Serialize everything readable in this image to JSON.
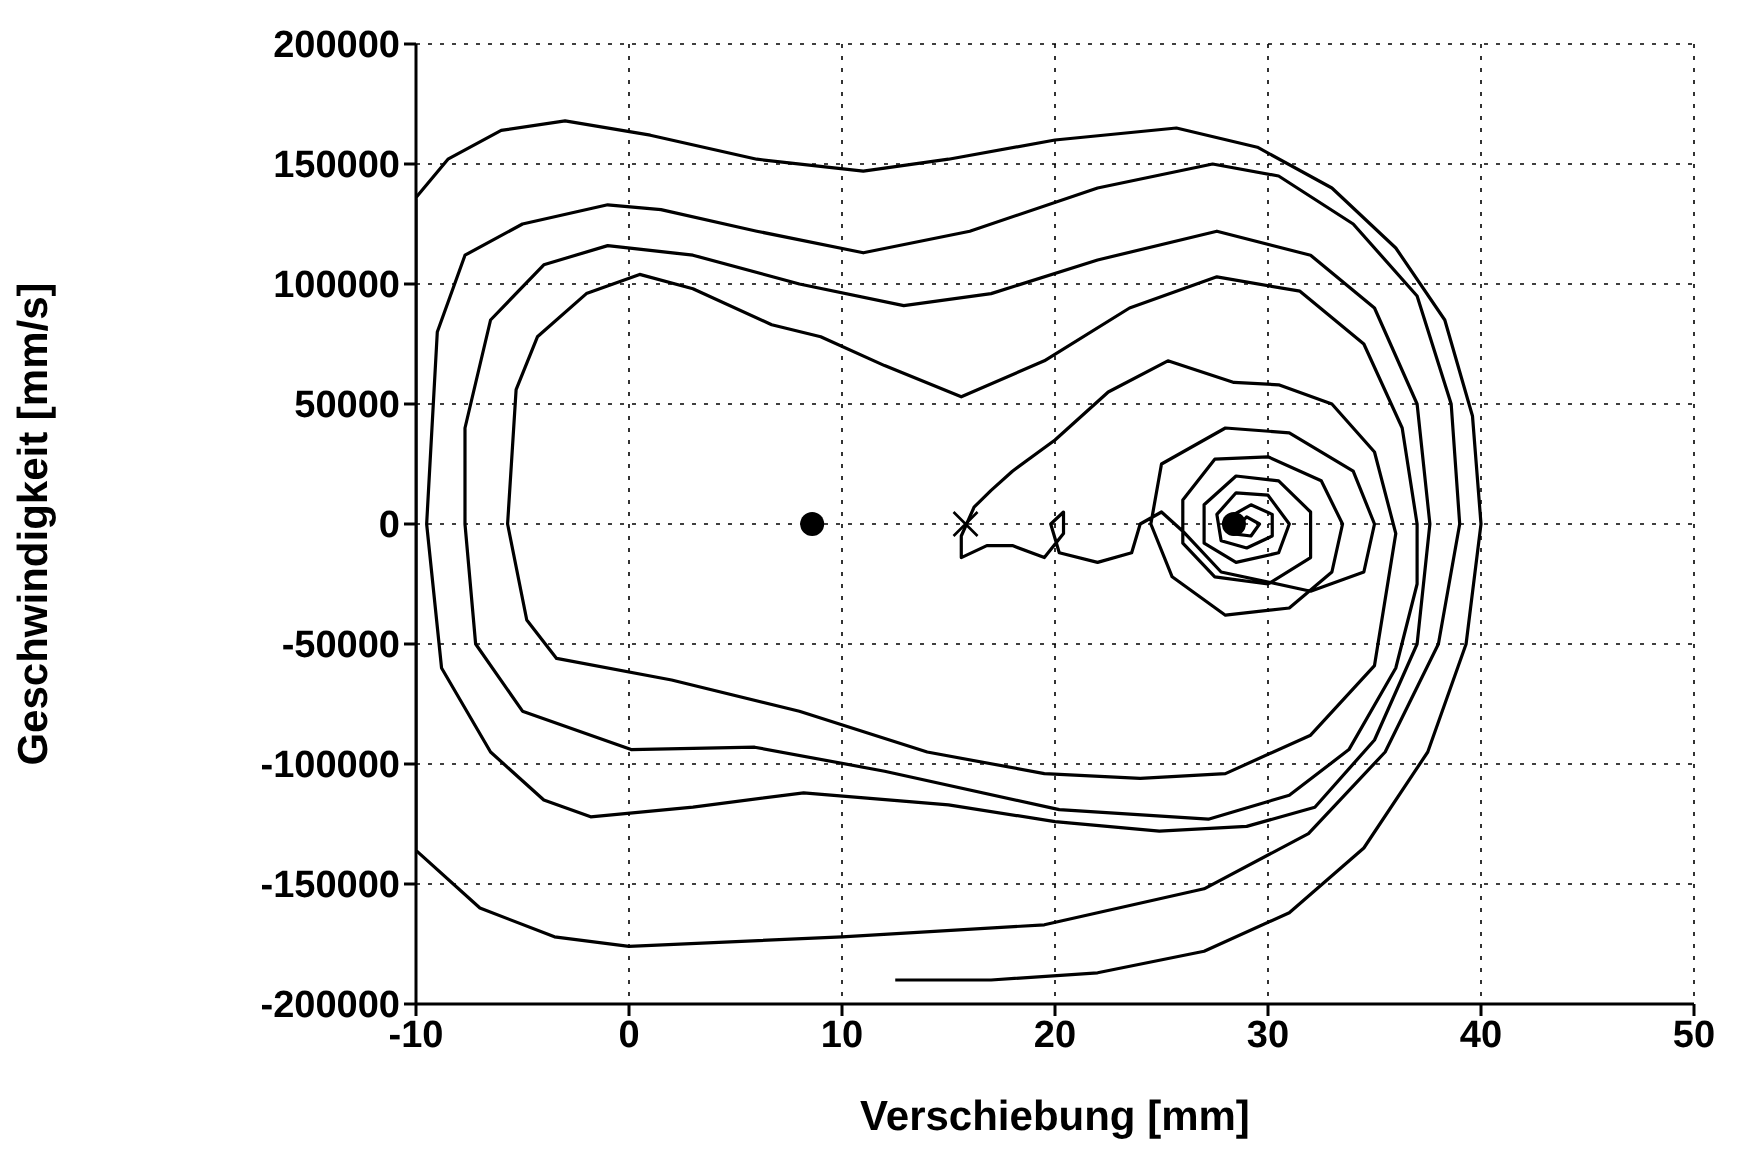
{
  "chart_data": {
    "type": "line",
    "xlabel": "Verschiebung [mm]",
    "ylabel": "Geschwindigkeit [mm/s]",
    "xlim": [
      -10,
      50
    ],
    "ylim": [
      -200000,
      200000
    ],
    "xticks": [
      -10,
      0,
      10,
      20,
      30,
      40,
      50
    ],
    "yticks": [
      -200000,
      -150000,
      -100000,
      -50000,
      0,
      50000,
      100000,
      150000,
      200000
    ],
    "grid": true,
    "line_style": "solid",
    "series": [
      {
        "color": "#000000",
        "marker": "none",
        "x": [
          12.5,
          17,
          22,
          27,
          31,
          34.5,
          37.5,
          39.3,
          40,
          39.6,
          38.3,
          36,
          33,
          29.5,
          25.7,
          20,
          15,
          11,
          6,
          1,
          -3,
          -6,
          -8.5,
          -10,
          -10,
          -10,
          -7,
          -3.5,
          0,
          10,
          19.5,
          27,
          31.9,
          35.5,
          38,
          39,
          38.6,
          37,
          34,
          30.5,
          27.4,
          22,
          16,
          11,
          6,
          1.5,
          -1,
          -5,
          -7.7,
          -9,
          -9.5,
          -8.8,
          -6.5,
          -4,
          -1.8,
          3,
          8.2,
          15,
          20,
          24.9,
          29,
          32.2,
          35,
          37,
          37.6,
          37,
          35,
          32,
          27.6,
          22,
          17,
          12.9,
          8,
          3,
          -1,
          -4,
          -6.5,
          -7.7,
          -7.7,
          -7.2,
          -5,
          0.1,
          5.9,
          12,
          20.2,
          27.2,
          31,
          33.8,
          36,
          37,
          37,
          36.3,
          34.5,
          31.5,
          27.6,
          23.5,
          19.5,
          15.6,
          12,
          9,
          6.7,
          3,
          0.5,
          -2,
          -4.3,
          -5.3,
          -5.7,
          -4.8,
          -3.4,
          2,
          8,
          14,
          19.5,
          24,
          28,
          32,
          35,
          36,
          35,
          33,
          30.5,
          28.4,
          25.3,
          22.5,
          20,
          18,
          17,
          16.2,
          15.6,
          15.6,
          16.8,
          18,
          19.5,
          20.4,
          20.4,
          19.8,
          20.2,
          22,
          23.6,
          24,
          25,
          26,
          27.8,
          32,
          34.5,
          35,
          34,
          31,
          28,
          25,
          24.5,
          25.5,
          28,
          31,
          33,
          33.5,
          32.5,
          30,
          27.5,
          26,
          26,
          27.5,
          30,
          32,
          32,
          30.5,
          28.5,
          27,
          27,
          28.5,
          30.5,
          31,
          30,
          28.5,
          27.6,
          27.8,
          29,
          30.2,
          30.2,
          29.2,
          28.2,
          28.3,
          29.2,
          29.6,
          29,
          28.7
        ],
        "values": [
          -190000,
          -190000,
          -187000,
          -178000,
          -162000,
          -135000,
          -95000,
          -50000,
          0,
          45000,
          85000,
          115000,
          140000,
          157000,
          165000,
          160000,
          152000,
          147000,
          152000,
          162000,
          168000,
          164000,
          152000,
          136000,
          0,
          -136000,
          -160000,
          -172000,
          -176000,
          -172000,
          -167000,
          -152000,
          -129000,
          -95000,
          -50000,
          0,
          50000,
          95000,
          125000,
          145000,
          150000,
          140000,
          122000,
          113000,
          122000,
          131000,
          133000,
          125000,
          112000,
          80000,
          0,
          -60000,
          -95000,
          -115000,
          -122000,
          -118000,
          -112000,
          -117000,
          -124000,
          -128000,
          -126000,
          -118000,
          -90000,
          -50000,
          0,
          50000,
          90000,
          112000,
          122000,
          110000,
          96000,
          91000,
          100000,
          112000,
          116000,
          108000,
          85000,
          40000,
          0,
          -50000,
          -78000,
          -94000,
          -93000,
          -103000,
          -119000,
          -123000,
          -113000,
          -94000,
          -60000,
          -25000,
          0,
          40000,
          75000,
          97000,
          103000,
          90000,
          68000,
          53000,
          66000,
          78000,
          83000,
          98000,
          104000,
          96000,
          78000,
          56000,
          0,
          -40000,
          -56000,
          -65000,
          -78000,
          -95000,
          -104000,
          -106000,
          -104000,
          -88000,
          -59000,
          -4000,
          30000,
          50000,
          58000,
          59000,
          68000,
          55000,
          35000,
          22000,
          14000,
          7000,
          -5000,
          -14000,
          -9000,
          -9000,
          -14000,
          -4000,
          5000,
          0,
          -12000,
          -16000,
          -12000,
          0,
          5000,
          -3000,
          -20000,
          -28000,
          -20000,
          0,
          22000,
          38000,
          40000,
          25000,
          0,
          -22000,
          -38000,
          -35000,
          -20000,
          0,
          18000,
          28000,
          27000,
          10000,
          -8000,
          -22000,
          -25000,
          -14000,
          5000,
          18000,
          20000,
          8000,
          -8000,
          -16000,
          -12000,
          0,
          12000,
          13000,
          4000,
          -7000,
          -10000,
          -5000,
          4000,
          8000,
          3000,
          -4000,
          -5000,
          0,
          3000,
          0
        ]
      },
      {
        "type": "scatter",
        "color": "#000000",
        "marker": "circle",
        "x": [
          8.6,
          28.4
        ],
        "values": [
          0,
          0
        ]
      },
      {
        "type": "scatter",
        "color": "#000000",
        "marker": "cross",
        "x": [
          15.8
        ],
        "values": [
          0
        ]
      }
    ]
  }
}
